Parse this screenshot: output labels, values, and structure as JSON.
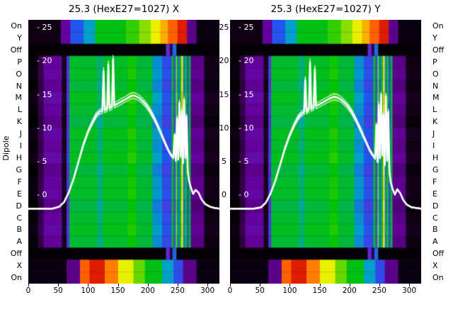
{
  "figure": {
    "ylabel": "Dipole",
    "x_max": 320,
    "row_labels": [
      "On",
      "Y",
      "Off",
      "P",
      "O",
      "N",
      "M",
      "L",
      "K",
      "J",
      "I",
      "H",
      "G",
      "F",
      "E",
      "D",
      "C",
      "B",
      "A",
      "Off",
      "X",
      "On"
    ],
    "value_ticks": [
      {
        "v": 25,
        "label": "25",
        "inner_label": "- 25"
      },
      {
        "v": 20,
        "label": "20",
        "inner_label": "- 20"
      },
      {
        "v": 15,
        "label": "15",
        "inner_label": "- 15"
      },
      {
        "v": 10,
        "label": "10",
        "inner_label": "- 10"
      },
      {
        "v": 5,
        "label": "5",
        "inner_label": "- 5"
      },
      {
        "v": 0,
        "label": "0",
        "inner_label": "- 0"
      }
    ],
    "x_ticks": [
      {
        "v": 0,
        "label": "0"
      },
      {
        "v": 50,
        "label": "50"
      },
      {
        "v": 100,
        "label": "100"
      },
      {
        "v": 150,
        "label": "150"
      },
      {
        "v": 200,
        "label": "200"
      },
      {
        "v": 250,
        "label": "250"
      },
      {
        "v": 300,
        "label": "300"
      }
    ],
    "v_axis": {
      "v0_frac": 0.665,
      "v25_frac": 0.03
    },
    "line_color": "#ffffff"
  },
  "chart_data": [
    {
      "type": "heatmap",
      "title": "25.3 (HexE27=1027) X",
      "overlay_line": {
        "x": [
          0,
          40,
          52,
          60,
          68,
          76,
          84,
          92,
          100,
          108,
          114,
          120,
          124,
          126,
          128,
          132,
          134,
          136,
          140,
          142,
          144,
          150,
          156,
          162,
          168,
          174,
          180,
          186,
          192,
          198,
          204,
          210,
          216,
          222,
          228,
          234,
          239,
          243,
          245,
          247,
          249,
          251,
          253,
          255,
          257,
          259,
          261,
          263,
          265,
          267,
          269,
          272,
          276,
          280,
          285,
          290,
          296,
          304,
          312,
          320
        ],
        "v": [
          -2,
          -2,
          -1.7,
          -1,
          0.5,
          2.5,
          5,
          7.5,
          9.5,
          11,
          12,
          12.5,
          12.6,
          18.5,
          12.7,
          12.9,
          19.5,
          13,
          13.2,
          20.3,
          13.4,
          13.7,
          14,
          14.3,
          14.6,
          14.9,
          14.8,
          14.5,
          14,
          13.4,
          12.6,
          11.6,
          10.5,
          9.3,
          8,
          6.8,
          6,
          5.6,
          9,
          5.2,
          11.5,
          5.4,
          13.8,
          5.8,
          12.6,
          4.8,
          14.2,
          5.6,
          11.8,
          3.6,
          2.2,
          1.2,
          0.2,
          0.8,
          0.4,
          -0.6,
          -1.3,
          -1.7,
          -1.9,
          -2
        ]
      }
    },
    {
      "type": "heatmap",
      "title": "25.3 (HexE27=1027) Y",
      "overlay_line": {
        "x": [
          0,
          40,
          52,
          60,
          68,
          76,
          84,
          92,
          100,
          108,
          114,
          120,
          124,
          126,
          128,
          132,
          134,
          136,
          140,
          142,
          144,
          150,
          156,
          162,
          168,
          174,
          180,
          186,
          192,
          198,
          204,
          210,
          216,
          222,
          228,
          234,
          239,
          243,
          245,
          247,
          249,
          251,
          253,
          255,
          257,
          259,
          261,
          263,
          265,
          267,
          269,
          272,
          276,
          280,
          285,
          290,
          296,
          304,
          312,
          320
        ],
        "v": [
          -2,
          -2,
          -1.8,
          -1.1,
          0.3,
          2.2,
          4.6,
          7,
          9,
          10.6,
          11.6,
          12.2,
          12.4,
          17.2,
          12.5,
          12.8,
          19.8,
          12.9,
          13.1,
          18.8,
          13.3,
          13.6,
          13.9,
          14.2,
          14.5,
          14.7,
          14.6,
          14.3,
          13.8,
          13.2,
          12.4,
          11.4,
          10.3,
          9.1,
          7.9,
          6.7,
          6,
          5.5,
          10.5,
          5,
          13.5,
          5.6,
          15,
          6,
          12,
          4.5,
          14.8,
          5.2,
          12.5,
          3.4,
          2,
          1,
          0.1,
          0.9,
          0.3,
          -0.7,
          -1.4,
          -1.8,
          -1.9,
          -2
        ]
      }
    }
  ],
  "heatmap": {
    "colormap": [
      [
        0.0,
        "#000000"
      ],
      [
        0.06,
        "#16001e"
      ],
      [
        0.14,
        "#3c0052"
      ],
      [
        0.22,
        "#64009b"
      ],
      [
        0.3,
        "#5b2bd0"
      ],
      [
        0.38,
        "#2255ee"
      ],
      [
        0.46,
        "#00a0c8"
      ],
      [
        0.54,
        "#00b44a"
      ],
      [
        0.62,
        "#00c400"
      ],
      [
        0.7,
        "#66d800"
      ],
      [
        0.78,
        "#e8f000"
      ],
      [
        0.86,
        "#ff9900"
      ],
      [
        0.94,
        "#ff2a00"
      ],
      [
        1.0,
        "#990000"
      ]
    ],
    "rows": [
      {
        "label": "On",
        "profile": "band_top"
      },
      {
        "label": "Y",
        "profile": "band_top"
      },
      {
        "label": "Off",
        "profile": "off"
      },
      {
        "label": "P",
        "profile": "main"
      },
      {
        "label": "O",
        "profile": "main"
      },
      {
        "label": "N",
        "profile": "main"
      },
      {
        "label": "M",
        "profile": "main"
      },
      {
        "label": "L",
        "profile": "main"
      },
      {
        "label": "K",
        "profile": "main"
      },
      {
        "label": "J",
        "profile": "main"
      },
      {
        "label": "I",
        "profile": "main"
      },
      {
        "label": "H",
        "profile": "main"
      },
      {
        "label": "G",
        "profile": "main"
      },
      {
        "label": "F",
        "profile": "main"
      },
      {
        "label": "E",
        "profile": "main"
      },
      {
        "label": "D",
        "profile": "main"
      },
      {
        "label": "C",
        "profile": "main"
      },
      {
        "label": "B",
        "profile": "main"
      },
      {
        "label": "A",
        "profile": "main"
      },
      {
        "label": "Off",
        "profile": "off"
      },
      {
        "label": "X",
        "profile": "band_bottom"
      },
      {
        "label": "On",
        "profile": "band_bottom"
      }
    ],
    "main_row_offsets": [
      0.0,
      0.01,
      -0.01,
      0.02,
      0.0,
      -0.02,
      0.015,
      0.0,
      0.02,
      -0.015,
      0.005,
      0.01,
      -0.02,
      0.0,
      0.015,
      -0.005
    ],
    "profiles": {
      "band_top": [
        [
          0.17,
          0.04
        ],
        [
          0.05,
          0.22
        ],
        [
          0.07,
          0.38
        ],
        [
          0.06,
          0.46
        ],
        [
          0.16,
          0.6
        ],
        [
          0.07,
          0.66
        ],
        [
          0.06,
          0.72
        ],
        [
          0.05,
          0.78
        ],
        [
          0.04,
          0.84
        ],
        [
          0.05,
          0.9
        ],
        [
          0.05,
          0.96
        ],
        [
          0.05,
          0.2
        ],
        [
          0.12,
          0.03
        ]
      ],
      "off": [
        [
          0.72,
          0.01
        ],
        [
          0.02,
          0.3
        ],
        [
          0.015,
          0.12
        ],
        [
          0.02,
          0.4
        ],
        [
          0.225,
          0.01
        ]
      ],
      "main": [
        [
          0.05,
          0.02
        ],
        [
          0.03,
          0.12
        ],
        [
          0.095,
          0.22
        ],
        [
          0.025,
          0.06
        ],
        [
          0.015,
          0.32
        ],
        [
          0.145,
          0.57
        ],
        [
          0.03,
          0.51
        ],
        [
          0.13,
          0.58
        ],
        [
          0.045,
          0.63
        ],
        [
          0.085,
          0.56
        ],
        [
          0.05,
          0.44
        ],
        [
          0.05,
          0.36
        ],
        [
          0.01,
          0.6
        ],
        [
          0.01,
          0.35
        ],
        [
          0.01,
          0.68
        ],
        [
          0.01,
          0.4
        ],
        [
          0.01,
          0.57
        ],
        [
          0.01,
          0.8
        ],
        [
          0.01,
          0.42
        ],
        [
          0.01,
          0.62
        ],
        [
          0.01,
          0.35
        ],
        [
          0.01,
          0.58
        ],
        [
          0.07,
          0.2
        ],
        [
          0.08,
          0.04
        ]
      ],
      "band_bottom": [
        [
          0.2,
          0.03
        ],
        [
          0.07,
          0.2
        ],
        [
          0.05,
          0.9
        ],
        [
          0.08,
          0.96
        ],
        [
          0.07,
          0.88
        ],
        [
          0.08,
          0.78
        ],
        [
          0.06,
          0.7
        ],
        [
          0.09,
          0.6
        ],
        [
          0.06,
          0.46
        ],
        [
          0.05,
          0.36
        ],
        [
          0.07,
          0.2
        ],
        [
          0.12,
          0.03
        ]
      ]
    }
  }
}
